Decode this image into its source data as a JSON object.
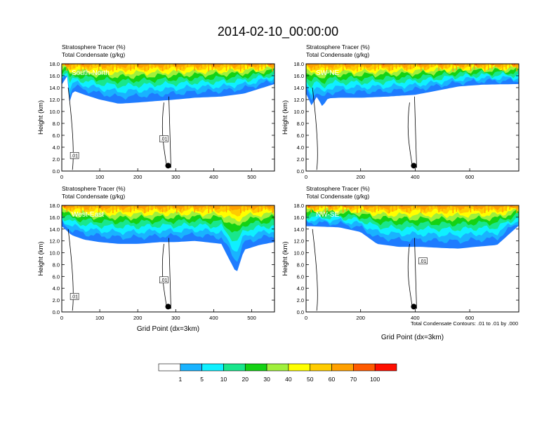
{
  "title": "2014-02-10_00:00:00",
  "chart_data": [
    {
      "type": "area",
      "cross_section": "South-North",
      "header_line1": "Stratosphere Tracer   (%)",
      "header_line2": "Total Condensate   (g/kg)",
      "ylabel": "Height (km)",
      "xlabel": "",
      "xlim": [
        0,
        560
      ],
      "ylim": [
        0,
        18
      ],
      "xticks": [
        "0",
        "100",
        "200",
        "300",
        "400",
        "500"
      ],
      "yticks": [
        "0.0",
        "2.0",
        "4.0",
        "6.0",
        "8.0",
        "10.0",
        "12.0",
        "14.0",
        "16.0",
        "18.0"
      ],
      "contour_labels": [
        ".01",
        ".01"
      ],
      "marker_x": 280,
      "bottom": [
        [
          0,
          14.5
        ],
        [
          15,
          16
        ],
        [
          20,
          11.5
        ],
        [
          30,
          13.5
        ],
        [
          60,
          12.8
        ],
        [
          100,
          12
        ],
        [
          150,
          11.3
        ],
        [
          200,
          11.5
        ],
        [
          260,
          11.8
        ],
        [
          300,
          12
        ],
        [
          350,
          12.3
        ],
        [
          420,
          12.5
        ],
        [
          480,
          13
        ],
        [
          530,
          14
        ],
        [
          560,
          14.6
        ]
      ]
    },
    {
      "type": "area",
      "cross_section": "SW-NE",
      "header_line1": "Stratosphere Tracer   (%)",
      "header_line2": "Total Condensate   (g/kg)",
      "ylabel": "Height (km)",
      "xlabel": "",
      "xlim": [
        0,
        780
      ],
      "ylim": [
        0,
        18
      ],
      "xticks": [
        "0",
        "200",
        "400",
        "600"
      ],
      "yticks": [
        "0.0",
        "2.0",
        "4.0",
        "6.0",
        "8.0",
        "10.0",
        "12.0",
        "14.0",
        "16.0",
        "18.0"
      ],
      "contour_labels": [],
      "marker_x": 395,
      "bottom": [
        [
          0,
          13
        ],
        [
          20,
          11
        ],
        [
          40,
          12.5
        ],
        [
          60,
          10.8
        ],
        [
          80,
          12.2
        ],
        [
          120,
          12.3
        ],
        [
          200,
          12.3
        ],
        [
          300,
          12.5
        ],
        [
          400,
          12.8
        ],
        [
          470,
          13.4
        ],
        [
          560,
          14.2
        ],
        [
          650,
          14.5
        ],
        [
          780,
          14.6
        ]
      ]
    },
    {
      "type": "area",
      "cross_section": "West-East",
      "header_line1": "Stratosphere Tracer   (%)",
      "header_line2": "Total Condensate   (g/kg)",
      "ylabel": "Height (km)",
      "xlabel": "Grid Point (dx=3km)",
      "xlim": [
        0,
        560
      ],
      "ylim": [
        0,
        18
      ],
      "xticks": [
        "0",
        "100",
        "200",
        "300",
        "400",
        "500"
      ],
      "yticks": [
        "0.0",
        "2.0",
        "4.0",
        "6.0",
        "8.0",
        "10.0",
        "12.0",
        "14.0",
        "16.0",
        "18.0"
      ],
      "contour_labels": [
        ".01",
        ".01"
      ],
      "marker_x": 280,
      "bottom": [
        [
          0,
          14.5
        ],
        [
          25,
          13
        ],
        [
          60,
          12.2
        ],
        [
          100,
          11.8
        ],
        [
          150,
          11.5
        ],
        [
          200,
          11.5
        ],
        [
          260,
          11.8
        ],
        [
          300,
          11.8
        ],
        [
          350,
          12
        ],
        [
          420,
          11.5
        ],
        [
          460,
          6.5
        ],
        [
          480,
          10.5
        ],
        [
          520,
          11.3
        ],
        [
          560,
          11.8
        ]
      ]
    },
    {
      "type": "area",
      "cross_section": "NW-SE",
      "header_line1": "Stratosphere Tracer   (%)",
      "header_line2": "Total Condensate   (g/kg)",
      "ylabel": "Height (km)",
      "xlabel": "Grid Point (dx=3km)",
      "xlim": [
        0,
        780
      ],
      "ylim": [
        0,
        18
      ],
      "xticks": [
        "0",
        "200",
        "400",
        "600"
      ],
      "yticks": [
        "0.0",
        "2.0",
        "4.0",
        "6.0",
        "8.0",
        "10.0",
        "12.0",
        "14.0",
        "16.0",
        "18.0"
      ],
      "contour_labels": [
        ".01"
      ],
      "marker_x": 395,
      "bottom": [
        [
          0,
          14.5
        ],
        [
          120,
          14.3
        ],
        [
          200,
          13.5
        ],
        [
          260,
          11.5
        ],
        [
          340,
          11
        ],
        [
          420,
          11
        ],
        [
          500,
          10.8
        ],
        [
          560,
          10.7
        ],
        [
          620,
          11
        ],
        [
          700,
          11.3
        ],
        [
          780,
          14.6
        ]
      ]
    }
  ],
  "contour_note": "Total Condensate Contours: .01 to .01 by .000",
  "colorbar": {
    "colors": [
      "#ffffff",
      "#1e7cff",
      "#19b3ff",
      "#0ff0ff",
      "#19e68c",
      "#14d214",
      "#a0f03c",
      "#ffff00",
      "#ffcc00",
      "#ffa000",
      "#ff5a00",
      "#ff0f00"
    ],
    "labels": [
      "1",
      "5",
      "10",
      "20",
      "30",
      "40",
      "50",
      "60",
      "70",
      "100"
    ]
  }
}
